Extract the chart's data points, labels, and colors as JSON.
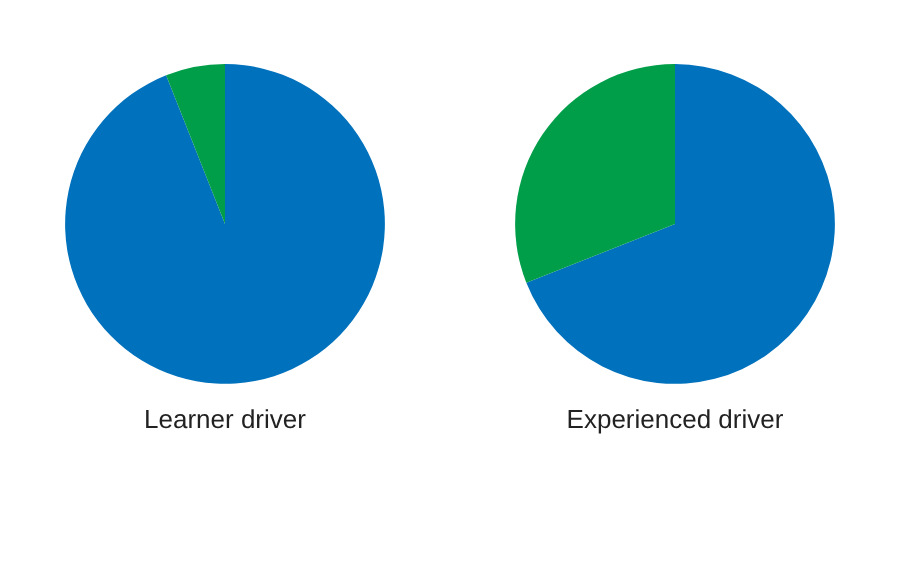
{
  "chart_data": [
    {
      "type": "pie",
      "title": "Learner driver",
      "categories": [
        null,
        null
      ],
      "values": [
        94,
        6
      ],
      "colors": [
        "#0071bc",
        "#009e49"
      ],
      "legend": false
    },
    {
      "type": "pie",
      "title": "Experienced driver",
      "categories": [
        null,
        null
      ],
      "values": [
        69,
        31
      ],
      "colors": [
        "#0071bc",
        "#009e49"
      ],
      "legend": false
    }
  ]
}
